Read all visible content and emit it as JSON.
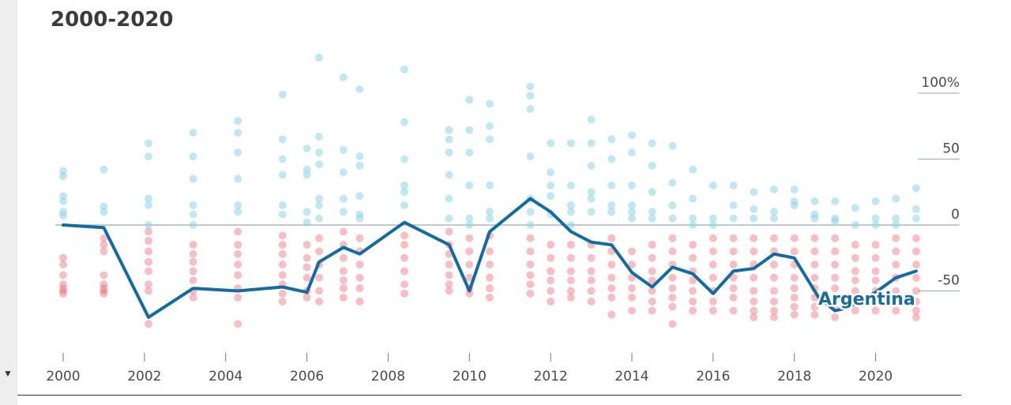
{
  "header": {
    "title": "2000-2020"
  },
  "ui": {
    "collapse_icon": "triangle-down-icon"
  },
  "chart_data": {
    "type": "scatter",
    "title": "2000-2020",
    "xlim": [
      2000,
      2021
    ],
    "ylim": [
      -100,
      130
    ],
    "x_ticks": [
      2000,
      2002,
      2004,
      2006,
      2008,
      2010,
      2012,
      2014,
      2016,
      2018,
      2020
    ],
    "y_ticks": [
      {
        "value": 100,
        "label": "100%"
      },
      {
        "value": 50,
        "label": "50"
      },
      {
        "value": 0,
        "label": "0"
      },
      {
        "value": -50,
        "label": "-50"
      }
    ],
    "colors": {
      "positive": "#8fd4e4",
      "negative": "#eb7080",
      "line": "#156ba0",
      "zero_line": "#a8bcc4"
    },
    "dots": [
      {
        "x": 2000.0,
        "values": [
          41,
          37,
          22,
          18,
          10,
          7,
          -25,
          -30,
          -38,
          -45,
          -48,
          -50,
          -52
        ]
      },
      {
        "x": 2001.0,
        "values": [
          42,
          14,
          10,
          -10,
          -15,
          -20,
          -38,
          -45,
          -48,
          -50,
          -52
        ]
      },
      {
        "x": 2002.1,
        "values": [
          62,
          52,
          20,
          15,
          0,
          -5,
          -12,
          -20,
          -28,
          -35,
          -45,
          -50,
          -75
        ]
      },
      {
        "x": 2003.2,
        "values": [
          70,
          52,
          35,
          15,
          8,
          0,
          -15,
          -22,
          -28,
          -35,
          -42,
          -50,
          -55
        ]
      },
      {
        "x": 2004.3,
        "values": [
          79,
          70,
          55,
          35,
          15,
          10,
          -5,
          -15,
          -22,
          -30,
          -38,
          -48,
          -55,
          -75
        ]
      },
      {
        "x": 2005.4,
        "values": [
          99,
          65,
          50,
          38,
          15,
          8,
          -8,
          -15,
          -22,
          -30,
          -38,
          -45,
          -52,
          -58
        ]
      },
      {
        "x": 2006.0,
        "values": [
          58,
          42,
          38,
          10,
          2,
          -15,
          -25,
          -32,
          -40,
          -50,
          -55
        ]
      },
      {
        "x": 2006.3,
        "values": [
          127,
          67,
          55,
          46,
          20,
          15,
          5,
          -10,
          -20,
          -30,
          -40,
          -50,
          -58
        ]
      },
      {
        "x": 2006.9,
        "values": [
          112,
          57,
          40,
          20,
          10,
          -5,
          -15,
          -25,
          -35,
          -42,
          -48,
          -55
        ]
      },
      {
        "x": 2007.3,
        "values": [
          103,
          52,
          45,
          22,
          8,
          5,
          -10,
          -20,
          -30,
          -40,
          -48,
          -58
        ]
      },
      {
        "x": 2008.4,
        "values": [
          118,
          78,
          50,
          30,
          25,
          15,
          -8,
          -15,
          -25,
          -35,
          -45,
          -52
        ]
      },
      {
        "x": 2009.5,
        "values": [
          72,
          65,
          55,
          38,
          20,
          5,
          -5,
          -15,
          -22,
          -30,
          -38,
          -45,
          -50
        ]
      },
      {
        "x": 2010.0,
        "values": [
          95,
          72,
          55,
          30,
          5,
          0,
          -10,
          -20,
          -30,
          -40,
          -48,
          -52
        ]
      },
      {
        "x": 2010.5,
        "values": [
          92,
          75,
          65,
          30,
          10,
          5,
          -8,
          -20,
          -30,
          -40,
          -48,
          -55
        ]
      },
      {
        "x": 2011.5,
        "values": [
          105,
          98,
          88,
          52,
          20,
          10,
          0,
          -10,
          -20,
          -30,
          -38,
          -45,
          -52
        ]
      },
      {
        "x": 2012.0,
        "values": [
          62,
          40,
          30,
          22,
          8,
          -15,
          -25,
          -35,
          -42,
          -50,
          -58
        ]
      },
      {
        "x": 2012.5,
        "values": [
          62,
          30,
          15,
          10,
          0,
          -15,
          -25,
          -35,
          -42,
          -50,
          -55
        ]
      },
      {
        "x": 2013.0,
        "values": [
          80,
          62,
          45,
          25,
          20,
          10,
          -15,
          -25,
          -35,
          -42,
          -50,
          -58
        ]
      },
      {
        "x": 2013.5,
        "values": [
          65,
          50,
          30,
          15,
          10,
          -10,
          -20,
          -30,
          -40,
          -48,
          -55,
          -68
        ]
      },
      {
        "x": 2014.0,
        "values": [
          68,
          55,
          30,
          15,
          10,
          5,
          -20,
          -30,
          -40,
          -48,
          -55,
          -65
        ]
      },
      {
        "x": 2014.5,
        "values": [
          62,
          45,
          25,
          10,
          5,
          -15,
          -25,
          -35,
          -42,
          -50,
          -58,
          -65
        ]
      },
      {
        "x": 2015.0,
        "values": [
          60,
          32,
          15,
          5,
          -10,
          -20,
          -30,
          -40,
          -48,
          -55,
          -62,
          -75
        ]
      },
      {
        "x": 2015.5,
        "values": [
          42,
          20,
          5,
          0,
          -15,
          -25,
          -35,
          -42,
          -50,
          -58,
          -65
        ]
      },
      {
        "x": 2016.0,
        "values": [
          30,
          5,
          0,
          -10,
          -20,
          -30,
          -40,
          -50,
          -58,
          -65
        ]
      },
      {
        "x": 2016.5,
        "values": [
          30,
          15,
          5,
          -10,
          -20,
          -30,
          -40,
          -48,
          -55,
          -65
        ]
      },
      {
        "x": 2017.0,
        "values": [
          25,
          12,
          5,
          -10,
          -20,
          -30,
          -40,
          -50,
          -58,
          -65,
          -70
        ]
      },
      {
        "x": 2017.5,
        "values": [
          27,
          10,
          5,
          -10,
          -20,
          -30,
          -40,
          -50,
          -58,
          -65,
          -70
        ]
      },
      {
        "x": 2018.0,
        "values": [
          27,
          18,
          15,
          -10,
          -20,
          -30,
          -40,
          -48,
          -55,
          -62,
          -68
        ]
      },
      {
        "x": 2018.5,
        "values": [
          18,
          8,
          5,
          -10,
          -20,
          -30,
          -40,
          -48,
          -55,
          -62,
          -68
        ]
      },
      {
        "x": 2019.0,
        "values": [
          18,
          5,
          3,
          -10,
          -20,
          -30,
          -40,
          -48,
          -55,
          -62,
          -70
        ]
      },
      {
        "x": 2019.5,
        "values": [
          13,
          0,
          -15,
          -25,
          -35,
          -42,
          -50,
          -58,
          -65
        ]
      },
      {
        "x": 2020.0,
        "values": [
          18,
          5,
          0,
          -15,
          -25,
          -35,
          -42,
          -50,
          -58,
          -65
        ]
      },
      {
        "x": 2020.5,
        "values": [
          20,
          5,
          0,
          -10,
          -20,
          -30,
          -40,
          -50,
          -58,
          -65
        ]
      },
      {
        "x": 2021.0,
        "values": [
          28,
          12,
          5,
          -10,
          -20,
          -30,
          -40,
          -50,
          -58,
          -65,
          -70
        ]
      }
    ],
    "series": [
      {
        "name": "Argentina",
        "points": [
          [
            2000.0,
            0
          ],
          [
            2001.0,
            -2
          ],
          [
            2002.1,
            -70
          ],
          [
            2003.2,
            -48
          ],
          [
            2004.3,
            -50
          ],
          [
            2005.4,
            -47
          ],
          [
            2006.0,
            -51
          ],
          [
            2006.3,
            -28
          ],
          [
            2006.9,
            -17
          ],
          [
            2007.3,
            -22
          ],
          [
            2008.4,
            2
          ],
          [
            2009.5,
            -15
          ],
          [
            2010.0,
            -50
          ],
          [
            2010.5,
            -5
          ],
          [
            2011.5,
            20
          ],
          [
            2012.0,
            10
          ],
          [
            2012.5,
            -5
          ],
          [
            2013.0,
            -13
          ],
          [
            2013.5,
            -15
          ],
          [
            2014.0,
            -36
          ],
          [
            2014.5,
            -47
          ],
          [
            2015.0,
            -32
          ],
          [
            2015.5,
            -37
          ],
          [
            2016.0,
            -52
          ],
          [
            2016.5,
            -35
          ],
          [
            2017.0,
            -33
          ],
          [
            2017.5,
            -22
          ],
          [
            2018.0,
            -25
          ],
          [
            2018.6,
            -55
          ],
          [
            2019.0,
            -65
          ],
          [
            2019.3,
            -63
          ],
          [
            2020.0,
            -51
          ],
          [
            2020.5,
            -40
          ],
          [
            2021.0,
            -35
          ]
        ]
      }
    ]
  }
}
